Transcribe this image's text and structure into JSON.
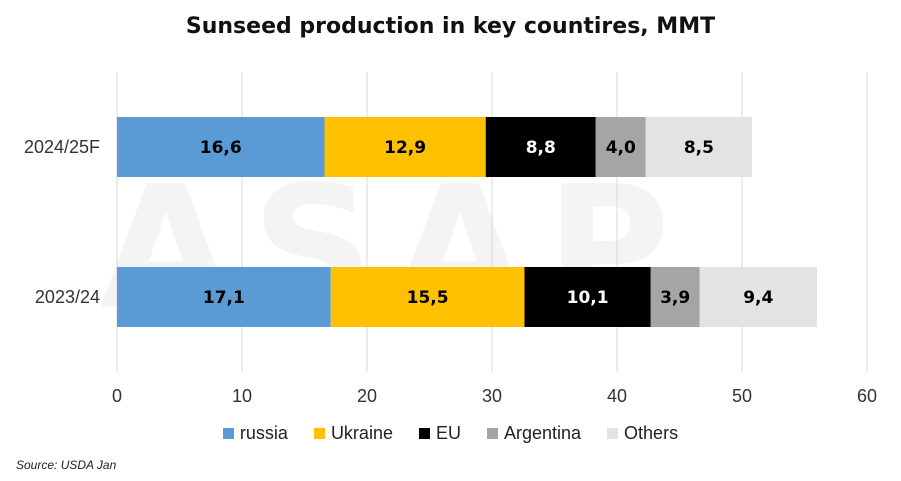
{
  "colors": {
    "russia": "#5b9bd5",
    "Ukraine": "#ffc000",
    "EU": "#000000",
    "Argentina": "#a5a5a5",
    "Others": "#e3e3e3",
    "grid": "#d9d9d9"
  },
  "source": "Source: USDA Jan",
  "chart_data": {
    "type": "bar",
    "orientation": "horizontal",
    "stacked": true,
    "title": "Sunseed production in key countires, MMT",
    "categories": [
      "2024/25F",
      "2023/24"
    ],
    "series": [
      {
        "name": "russia",
        "values": [
          16.6,
          17.1
        ],
        "labels": [
          "16,6",
          "17,1"
        ]
      },
      {
        "name": "Ukraine",
        "values": [
          12.9,
          15.5
        ],
        "labels": [
          "12,9",
          "15,5"
        ]
      },
      {
        "name": "EU",
        "values": [
          8.8,
          10.1
        ],
        "labels": [
          "8,8",
          "10,1"
        ]
      },
      {
        "name": "Argentina",
        "values": [
          4.0,
          3.9
        ],
        "labels": [
          "4,0",
          "3,9"
        ]
      },
      {
        "name": "Others",
        "values": [
          8.5,
          9.4
        ],
        "labels": [
          "8,5",
          "9,4"
        ]
      }
    ],
    "xlim": [
      0,
      60
    ],
    "xticks": [
      "0",
      "10",
      "20",
      "30",
      "40",
      "50",
      "60"
    ],
    "grid": true,
    "legend": "bottom"
  }
}
